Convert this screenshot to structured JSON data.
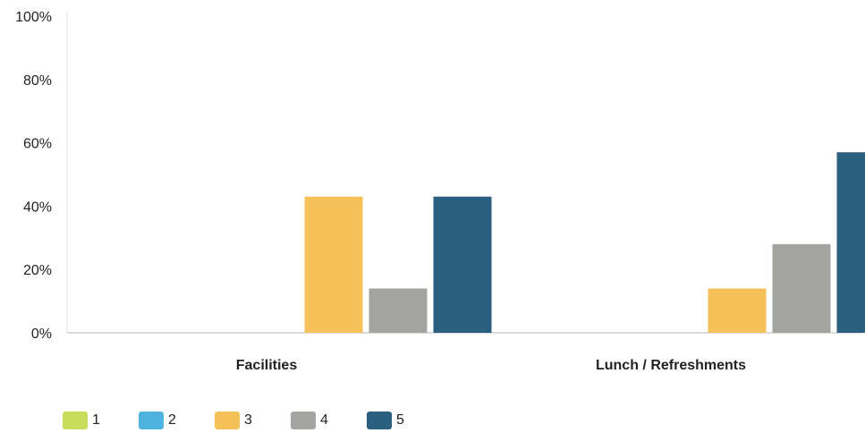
{
  "chart_data": {
    "type": "bar",
    "title": "",
    "xlabel": "",
    "ylabel": "",
    "ylim": [
      0,
      100
    ],
    "y_ticks": [
      "0%",
      "20%",
      "40%",
      "60%",
      "80%",
      "100%"
    ],
    "categories": [
      "Facilities",
      "Lunch / Refreshments"
    ],
    "grid": false,
    "legend_position": "bottom-left",
    "series": [
      {
        "name": "1",
        "color": "#c8dd5a",
        "values": [
          0,
          0
        ]
      },
      {
        "name": "2",
        "color": "#4fb3e0",
        "values": [
          0,
          0
        ]
      },
      {
        "name": "3",
        "color": "#f5c158",
        "values": [
          43,
          14
        ]
      },
      {
        "name": "4",
        "color": "#a3a3a0",
        "values": [
          14,
          28
        ]
      },
      {
        "name": "5",
        "color": "#2b5f7f",
        "values": [
          43,
          57
        ]
      }
    ]
  }
}
